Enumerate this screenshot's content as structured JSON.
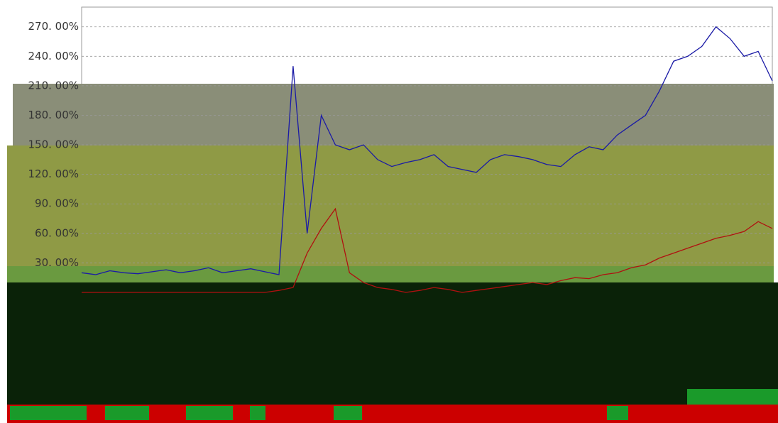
{
  "chart_data": {
    "type": "line",
    "ylim": [
      0,
      290
    ],
    "yticks": [
      {
        "value": 30,
        "label": "30. 00%"
      },
      {
        "value": 60,
        "label": "60. 00%"
      },
      {
        "value": 90,
        "label": "90. 00%"
      },
      {
        "value": 120,
        "label": "120. 00%"
      },
      {
        "value": 150,
        "label": "150. 00%"
      },
      {
        "value": 180,
        "label": "180. 00%"
      },
      {
        "value": 210,
        "label": "210. 00%"
      },
      {
        "value": 240,
        "label": "240. 00%"
      },
      {
        "value": 270,
        "label": "270. 00%"
      }
    ],
    "grid": true,
    "series": [
      {
        "color": "#1a1aa6",
        "values": [
          20,
          18,
          22,
          20,
          19,
          21,
          23,
          20,
          22,
          25,
          20,
          22,
          24,
          21,
          18,
          230,
          60,
          180,
          150,
          145,
          150,
          135,
          128,
          132,
          135,
          140,
          128,
          125,
          122,
          135,
          140,
          138,
          135,
          130,
          128,
          140,
          148,
          145,
          160,
          170,
          180,
          205,
          235,
          240,
          250,
          270,
          258,
          240,
          245,
          215
        ]
      },
      {
        "color": "#b01010",
        "values": [
          0,
          0,
          0,
          0,
          0,
          0,
          0,
          0,
          0,
          0,
          0,
          0,
          0,
          0,
          2,
          5,
          40,
          65,
          85,
          20,
          10,
          5,
          3,
          0,
          2,
          5,
          3,
          0,
          2,
          4,
          6,
          8,
          10,
          8,
          12,
          15,
          14,
          18,
          20,
          25,
          28,
          35,
          40,
          45,
          50,
          55,
          58,
          62,
          72,
          65
        ]
      }
    ]
  }
}
